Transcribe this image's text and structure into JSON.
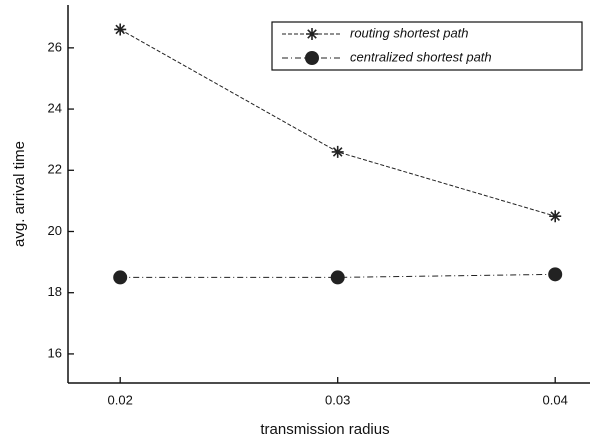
{
  "chart_data": {
    "type": "line",
    "xlabel": "transmission radius",
    "ylabel": "avg. arrival time",
    "x": [
      0.02,
      0.03,
      0.04
    ],
    "series": [
      {
        "name": "routing shortest path",
        "color": "#222222",
        "marker": "asterisk",
        "values": [
          26.6,
          22.6,
          20.5
        ]
      },
      {
        "name": "centralized shortest path",
        "color": "#222222",
        "marker": "circle",
        "values": [
          18.5,
          18.5,
          18.6
        ]
      }
    ],
    "xlim": [
      0.0176,
      0.0416
    ],
    "ylim": [
      15.05,
      27.4
    ],
    "xticks": [
      0.02,
      0.03,
      0.04
    ],
    "yticks": [
      16,
      18,
      20,
      22,
      24,
      26
    ],
    "legend": "upper right"
  }
}
